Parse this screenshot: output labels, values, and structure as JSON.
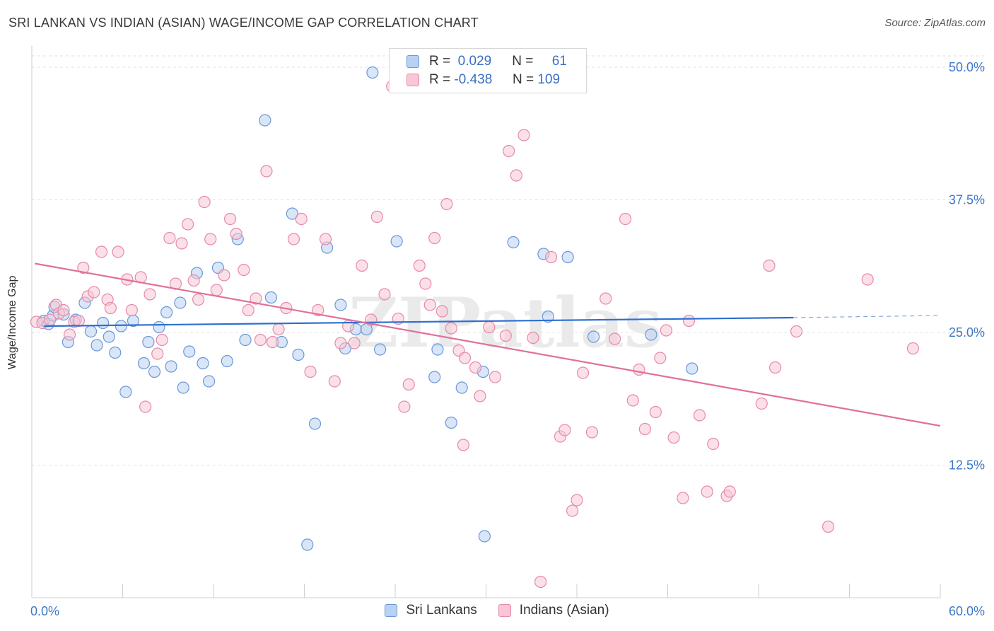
{
  "header": {
    "title": "SRI LANKAN VS INDIAN (ASIAN) WAGE/INCOME GAP CORRELATION CHART",
    "source": "Source: ZipAtlas.com"
  },
  "legend": {
    "rows": [
      {
        "r_label": "R =",
        "r_value": "0.029",
        "n_label": "N =",
        "n_value": "61",
        "fill": "#b9d1f3",
        "stroke": "#6b98d8"
      },
      {
        "r_label": "R =",
        "r_value": "-0.438",
        "n_label": "N =",
        "n_value": "109",
        "fill": "#f8c6d6",
        "stroke": "#e58aa8"
      }
    ],
    "series": [
      "Sri Lankans",
      "Indians (Asian)"
    ]
  },
  "chart_data": {
    "type": "scatter",
    "title": "SRI LANKAN VS INDIAN (ASIAN) WAGE/INCOME GAP CORRELATION CHART",
    "xlabel": "",
    "ylabel": "Wage/Income Gap",
    "xlim": [
      0,
      60
    ],
    "ylim": [
      0,
      52
    ],
    "x_tick_labels": [
      "0.0%",
      "60.0%"
    ],
    "y_ticks": [
      12.5,
      25.0,
      37.5,
      50.0
    ],
    "y_tick_labels": [
      "12.5%",
      "25.0%",
      "37.5%",
      "50.0%"
    ],
    "grid": true,
    "legend_position": "top-center",
    "watermark": "ZIPatlas",
    "series": [
      {
        "name": "Sri Lankans",
        "color": "#6b98d8",
        "fill": "#b9d1f3",
        "trend_color": "#2e6fd0",
        "trend": {
          "x0": 0.8,
          "y0": 25.6,
          "x1": 50.3,
          "y1": 26.4,
          "dash_x1": 60,
          "dash_y1": 26.6
        },
        "points": [
          [
            0.8,
            26.1
          ],
          [
            1.1,
            25.8
          ],
          [
            1.4,
            26.6
          ],
          [
            1.5,
            27.4
          ],
          [
            2.1,
            26.7
          ],
          [
            2.4,
            24.1
          ],
          [
            2.9,
            26.2
          ],
          [
            3.5,
            27.8
          ],
          [
            3.9,
            25.1
          ],
          [
            4.3,
            23.8
          ],
          [
            4.7,
            25.9
          ],
          [
            5.1,
            24.6
          ],
          [
            5.5,
            23.1
          ],
          [
            5.9,
            25.6
          ],
          [
            6.2,
            19.4
          ],
          [
            6.7,
            26.1
          ],
          [
            7.4,
            22.1
          ],
          [
            7.7,
            24.1
          ],
          [
            8.1,
            21.3
          ],
          [
            8.4,
            25.5
          ],
          [
            8.9,
            26.9
          ],
          [
            9.2,
            21.8
          ],
          [
            9.8,
            27.8
          ],
          [
            10.0,
            19.8
          ],
          [
            10.4,
            23.2
          ],
          [
            10.9,
            30.6
          ],
          [
            11.3,
            22.1
          ],
          [
            11.7,
            20.4
          ],
          [
            12.3,
            31.1
          ],
          [
            12.9,
            22.3
          ],
          [
            13.6,
            33.8
          ],
          [
            14.1,
            24.3
          ],
          [
            15.4,
            45.0
          ],
          [
            15.8,
            28.3
          ],
          [
            16.5,
            24.1
          ],
          [
            17.2,
            36.2
          ],
          [
            17.6,
            22.9
          ],
          [
            18.2,
            5.0
          ],
          [
            18.7,
            16.4
          ],
          [
            19.5,
            33.0
          ],
          [
            20.4,
            27.6
          ],
          [
            20.7,
            23.5
          ],
          [
            21.4,
            25.3
          ],
          [
            22.1,
            25.3
          ],
          [
            22.5,
            49.5
          ],
          [
            23.0,
            23.4
          ],
          [
            24.1,
            33.6
          ],
          [
            25.5,
            49.2
          ],
          [
            26.6,
            20.8
          ],
          [
            26.8,
            23.4
          ],
          [
            27.7,
            16.5
          ],
          [
            28.4,
            19.8
          ],
          [
            29.8,
            21.3
          ],
          [
            29.9,
            5.8
          ],
          [
            31.8,
            33.5
          ],
          [
            33.8,
            32.4
          ],
          [
            34.1,
            26.5
          ],
          [
            35.4,
            32.1
          ],
          [
            37.1,
            24.6
          ],
          [
            40.9,
            24.8
          ],
          [
            43.6,
            21.6
          ]
        ]
      },
      {
        "name": "Indians (Asian)",
        "color": "#e58aa8",
        "fill": "#f8c6d6",
        "trend_color": "#e0709a",
        "trend": {
          "x0": 0.2,
          "y0": 31.5,
          "x1": 60,
          "y1": 16.2
        },
        "points": [
          [
            0.3,
            26.0
          ],
          [
            0.7,
            25.9
          ],
          [
            1.2,
            26.2
          ],
          [
            1.6,
            27.6
          ],
          [
            1.8,
            26.8
          ],
          [
            2.1,
            27.1
          ],
          [
            2.5,
            24.8
          ],
          [
            2.8,
            26.0
          ],
          [
            3.1,
            26.1
          ],
          [
            3.4,
            31.1
          ],
          [
            3.7,
            28.4
          ],
          [
            4.1,
            28.8
          ],
          [
            4.6,
            32.6
          ],
          [
            5.0,
            28.1
          ],
          [
            5.2,
            27.3
          ],
          [
            5.7,
            32.6
          ],
          [
            6.3,
            30.0
          ],
          [
            6.6,
            27.1
          ],
          [
            7.2,
            30.2
          ],
          [
            7.5,
            18.0
          ],
          [
            7.8,
            28.6
          ],
          [
            8.3,
            23.0
          ],
          [
            8.6,
            24.3
          ],
          [
            9.1,
            33.9
          ],
          [
            9.5,
            29.6
          ],
          [
            9.9,
            33.4
          ],
          [
            10.3,
            35.2
          ],
          [
            10.7,
            29.9
          ],
          [
            11.0,
            28.1
          ],
          [
            11.4,
            37.3
          ],
          [
            11.8,
            33.8
          ],
          [
            12.2,
            29.0
          ],
          [
            12.7,
            30.4
          ],
          [
            13.1,
            35.7
          ],
          [
            13.5,
            34.3
          ],
          [
            14.0,
            30.9
          ],
          [
            14.3,
            27.1
          ],
          [
            14.8,
            28.2
          ],
          [
            15.1,
            24.3
          ],
          [
            15.5,
            40.2
          ],
          [
            15.9,
            24.1
          ],
          [
            16.3,
            25.3
          ],
          [
            16.8,
            27.3
          ],
          [
            17.3,
            33.8
          ],
          [
            17.8,
            35.7
          ],
          [
            18.4,
            21.3
          ],
          [
            18.9,
            27.1
          ],
          [
            19.4,
            33.8
          ],
          [
            20.0,
            20.4
          ],
          [
            20.4,
            24.0
          ],
          [
            20.9,
            25.6
          ],
          [
            21.3,
            24.0
          ],
          [
            21.8,
            31.3
          ],
          [
            22.4,
            26.2
          ],
          [
            22.8,
            35.9
          ],
          [
            23.3,
            28.6
          ],
          [
            23.8,
            48.2
          ],
          [
            24.2,
            26.3
          ],
          [
            24.6,
            18.0
          ],
          [
            24.9,
            20.1
          ],
          [
            25.6,
            31.3
          ],
          [
            26.0,
            29.6
          ],
          [
            26.3,
            27.6
          ],
          [
            26.6,
            33.9
          ],
          [
            27.1,
            27.0
          ],
          [
            27.4,
            37.1
          ],
          [
            27.7,
            25.4
          ],
          [
            28.2,
            23.3
          ],
          [
            28.5,
            14.4
          ],
          [
            28.6,
            22.6
          ],
          [
            29.3,
            21.7
          ],
          [
            29.6,
            19.0
          ],
          [
            30.2,
            25.5
          ],
          [
            30.6,
            20.8
          ],
          [
            31.3,
            24.7
          ],
          [
            31.5,
            42.1
          ],
          [
            32.0,
            39.8
          ],
          [
            32.5,
            43.6
          ],
          [
            33.1,
            24.5
          ],
          [
            33.6,
            1.5
          ],
          [
            34.3,
            32.1
          ],
          [
            34.9,
            15.2
          ],
          [
            35.2,
            15.8
          ],
          [
            35.7,
            8.2
          ],
          [
            36.0,
            9.2
          ],
          [
            36.4,
            21.2
          ],
          [
            37.0,
            15.6
          ],
          [
            37.9,
            28.2
          ],
          [
            38.5,
            24.4
          ],
          [
            39.2,
            35.7
          ],
          [
            39.7,
            18.6
          ],
          [
            40.1,
            21.5
          ],
          [
            40.5,
            15.9
          ],
          [
            41.2,
            17.5
          ],
          [
            41.5,
            22.6
          ],
          [
            41.9,
            25.2
          ],
          [
            42.4,
            15.1
          ],
          [
            43.0,
            9.4
          ],
          [
            43.4,
            26.1
          ],
          [
            44.1,
            17.2
          ],
          [
            44.6,
            10.0
          ],
          [
            45.0,
            14.5
          ],
          [
            45.9,
            9.6
          ],
          [
            46.1,
            10.0
          ],
          [
            48.2,
            18.3
          ],
          [
            48.7,
            31.3
          ],
          [
            49.1,
            21.7
          ],
          [
            50.5,
            25.1
          ],
          [
            52.6,
            6.7
          ],
          [
            55.2,
            30.0
          ],
          [
            58.2,
            23.5
          ]
        ]
      }
    ]
  }
}
